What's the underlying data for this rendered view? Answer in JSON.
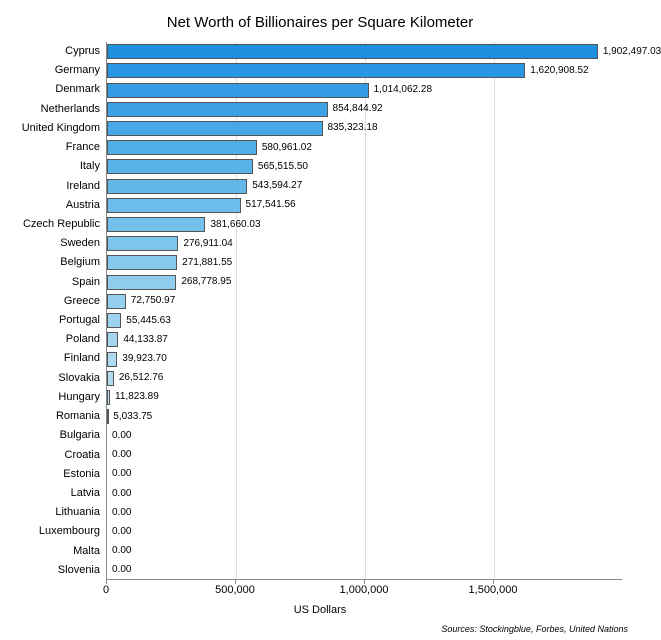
{
  "chart": {
    "type": "bar-horizontal",
    "title": "Net Worth of Billionaires per Square Kilometer",
    "x_axis_label": "US Dollars",
    "sources": "Sources: Stockingblue, Forbes, United Nations",
    "background_color": "#ffffff",
    "grid_color": "#dddddd",
    "axis_color": "#888888",
    "bar_border_color": "#555555",
    "title_fontsize": 15,
    "label_fontsize": 11,
    "value_fontsize": 10,
    "xlim_max": 2000000,
    "x_ticks": [
      {
        "pos": 0,
        "label": "0"
      },
      {
        "pos": 500000,
        "label": "500,000"
      },
      {
        "pos": 1000000,
        "label": "1,000,000"
      },
      {
        "pos": 1500000,
        "label": "1,500,000"
      }
    ],
    "categories": [
      {
        "name": "Cyprus",
        "value": 1902497.03,
        "label": "1,902,497.03",
        "color": "#1e90e0"
      },
      {
        "name": "Germany",
        "value": 1620908.52,
        "label": "1,620,908.52",
        "color": "#2896e2"
      },
      {
        "name": "Denmark",
        "value": 1014062.28,
        "label": "1,014,062.28",
        "color": "#329ce4"
      },
      {
        "name": "Netherlands",
        "value": 854844.92,
        "label": "854,844.92",
        "color": "#3ca2e5"
      },
      {
        "name": "United Kingdom",
        "value": 835323.18,
        "label": "835,323.18",
        "color": "#46a8e6"
      },
      {
        "name": "France",
        "value": 580961.02,
        "label": "580,961.02",
        "color": "#50aee7"
      },
      {
        "name": "Italy",
        "value": 565515.5,
        "label": "565,515.50",
        "color": "#5ab3e8"
      },
      {
        "name": "Ireland",
        "value": 543594.27,
        "label": "543,594.27",
        "color": "#63b8e9"
      },
      {
        "name": "Austria",
        "value": 517541.56,
        "label": "517,541.56",
        "color": "#6cbdea"
      },
      {
        "name": "Czech Republic",
        "value": 381660.03,
        "label": "381,660.03",
        "color": "#75c1eb"
      },
      {
        "name": "Sweden",
        "value": 276911.04,
        "label": "276,911.04",
        "color": "#7ec5ec"
      },
      {
        "name": "Belgium",
        "value": 271881.55,
        "label": "271,881.55",
        "color": "#86c9ed"
      },
      {
        "name": "Spain",
        "value": 268778.95,
        "label": "268,778.95",
        "color": "#8ecdee"
      },
      {
        "name": "Greece",
        "value": 72750.97,
        "label": "72,750.97",
        "color": "#96d0ef"
      },
      {
        "name": "Portugal",
        "value": 55445.63,
        "label": "55,445.63",
        "color": "#9dd3ef"
      },
      {
        "name": "Poland",
        "value": 44133.87,
        "label": "44,133.87",
        "color": "#a4d6f0"
      },
      {
        "name": "Finland",
        "value": 39923.7,
        "label": "39,923.70",
        "color": "#abd9f1"
      },
      {
        "name": "Slovakia",
        "value": 26512.76,
        "label": "26,512.76",
        "color": "#b1dbf1"
      },
      {
        "name": "Hungary",
        "value": 11823.89,
        "label": "11,823.89",
        "color": "#b7ddf2"
      },
      {
        "name": "Romania",
        "value": 5033.75,
        "label": "5,033.75",
        "color": "#bde0f2"
      },
      {
        "name": "Bulgaria",
        "value": 0.0,
        "label": "0.00",
        "color": "#c3e2f3"
      },
      {
        "name": "Croatia",
        "value": 0.0,
        "label": "0.00",
        "color": "#c8e4f3"
      },
      {
        "name": "Estonia",
        "value": 0.0,
        "label": "0.00",
        "color": "#cde6f4"
      },
      {
        "name": "Latvia",
        "value": 0.0,
        "label": "0.00",
        "color": "#d2e8f4"
      },
      {
        "name": "Lithuania",
        "value": 0.0,
        "label": "0.00",
        "color": "#d7eaf5"
      },
      {
        "name": "Luxembourg",
        "value": 0.0,
        "label": "0.00",
        "color": "#dbebf5"
      },
      {
        "name": "Malta",
        "value": 0.0,
        "label": "0.00",
        "color": "#dfedf5"
      },
      {
        "name": "Slovenia",
        "value": 0.0,
        "label": "0.00",
        "color": "#e3eff6"
      }
    ]
  }
}
